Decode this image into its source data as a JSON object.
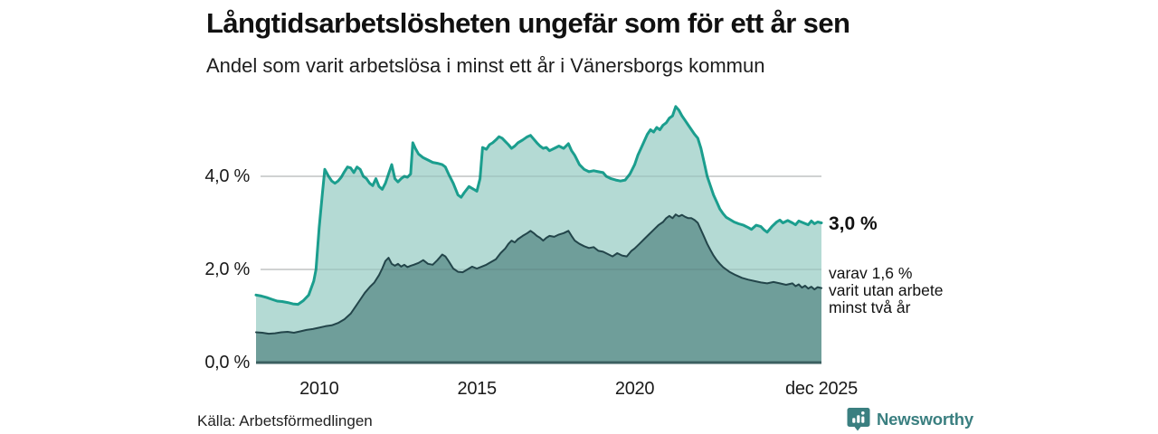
{
  "header": {
    "title": "Långtidsarbetslösheten ungefär som för ett år sen",
    "subtitle": "Andel som varit arbetslösa i minst ett år i Vänersborgs kommun"
  },
  "chart_data": {
    "type": "area",
    "unit": "%",
    "x_range": [
      2008,
      2025.92
    ],
    "ylim": [
      0,
      5.7
    ],
    "grid": "horizontal",
    "axis_color": "#3b5f60",
    "gridline_color": "#d9d9d9",
    "yticks": [
      {
        "value": 0,
        "label": "0,0 %"
      },
      {
        "value": 2,
        "label": "2,0 %"
      },
      {
        "value": 4,
        "label": "4,0 %"
      }
    ],
    "xticks": [
      {
        "value": 2010,
        "label": "2010"
      },
      {
        "value": 2015,
        "label": "2015"
      },
      {
        "value": 2020,
        "label": "2020"
      },
      {
        "value": 2025.92,
        "label": "dec 2025"
      }
    ],
    "series": [
      {
        "id": "minst-ett-ar",
        "name": "Andel arbetslösa i minst ett år",
        "color": "#1b9e8e",
        "fill": "#b4dad4",
        "line_width": 3,
        "end_value": "3,0 %",
        "points": [
          [
            2008.0,
            1.45
          ],
          [
            2008.17,
            1.43
          ],
          [
            2008.33,
            1.4
          ],
          [
            2008.5,
            1.36
          ],
          [
            2008.67,
            1.32
          ],
          [
            2008.83,
            1.31
          ],
          [
            2009.0,
            1.29
          ],
          [
            2009.17,
            1.26
          ],
          [
            2009.33,
            1.25
          ],
          [
            2009.5,
            1.33
          ],
          [
            2009.67,
            1.45
          ],
          [
            2009.83,
            1.75
          ],
          [
            2009.9,
            2.0
          ],
          [
            2010.0,
            2.9
          ],
          [
            2010.1,
            3.6
          ],
          [
            2010.18,
            4.15
          ],
          [
            2010.3,
            4.0
          ],
          [
            2010.4,
            3.9
          ],
          [
            2010.5,
            3.85
          ],
          [
            2010.6,
            3.9
          ],
          [
            2010.7,
            3.98
          ],
          [
            2010.8,
            4.1
          ],
          [
            2010.9,
            4.2
          ],
          [
            2011.0,
            4.18
          ],
          [
            2011.1,
            4.08
          ],
          [
            2011.2,
            4.2
          ],
          [
            2011.3,
            4.15
          ],
          [
            2011.4,
            4.0
          ],
          [
            2011.5,
            3.95
          ],
          [
            2011.6,
            3.85
          ],
          [
            2011.7,
            3.8
          ],
          [
            2011.8,
            3.95
          ],
          [
            2011.9,
            3.78
          ],
          [
            2012.0,
            3.72
          ],
          [
            2012.1,
            3.85
          ],
          [
            2012.2,
            4.05
          ],
          [
            2012.3,
            4.25
          ],
          [
            2012.4,
            3.95
          ],
          [
            2012.5,
            3.88
          ],
          [
            2012.6,
            3.95
          ],
          [
            2012.7,
            4.0
          ],
          [
            2012.8,
            3.98
          ],
          [
            2012.9,
            4.05
          ],
          [
            2012.97,
            4.72
          ],
          [
            2013.05,
            4.6
          ],
          [
            2013.15,
            4.48
          ],
          [
            2013.3,
            4.4
          ],
          [
            2013.45,
            4.35
          ],
          [
            2013.6,
            4.3
          ],
          [
            2013.75,
            4.28
          ],
          [
            2013.9,
            4.25
          ],
          [
            2014.0,
            4.2
          ],
          [
            2014.1,
            4.05
          ],
          [
            2014.25,
            3.85
          ],
          [
            2014.4,
            3.6
          ],
          [
            2014.5,
            3.55
          ],
          [
            2014.6,
            3.65
          ],
          [
            2014.75,
            3.78
          ],
          [
            2014.9,
            3.72
          ],
          [
            2015.0,
            3.68
          ],
          [
            2015.1,
            3.95
          ],
          [
            2015.18,
            4.62
          ],
          [
            2015.3,
            4.58
          ],
          [
            2015.4,
            4.68
          ],
          [
            2015.5,
            4.72
          ],
          [
            2015.6,
            4.78
          ],
          [
            2015.7,
            4.85
          ],
          [
            2015.8,
            4.82
          ],
          [
            2015.9,
            4.75
          ],
          [
            2016.0,
            4.68
          ],
          [
            2016.1,
            4.6
          ],
          [
            2016.2,
            4.65
          ],
          [
            2016.3,
            4.72
          ],
          [
            2016.45,
            4.78
          ],
          [
            2016.6,
            4.85
          ],
          [
            2016.7,
            4.88
          ],
          [
            2016.8,
            4.8
          ],
          [
            2016.9,
            4.72
          ],
          [
            2017.0,
            4.65
          ],
          [
            2017.1,
            4.6
          ],
          [
            2017.2,
            4.62
          ],
          [
            2017.3,
            4.55
          ],
          [
            2017.45,
            4.6
          ],
          [
            2017.6,
            4.65
          ],
          [
            2017.75,
            4.6
          ],
          [
            2017.9,
            4.7
          ],
          [
            2018.0,
            4.55
          ],
          [
            2018.1,
            4.45
          ],
          [
            2018.25,
            4.25
          ],
          [
            2018.4,
            4.15
          ],
          [
            2018.55,
            4.1
          ],
          [
            2018.7,
            4.12
          ],
          [
            2018.85,
            4.1
          ],
          [
            2019.0,
            4.08
          ],
          [
            2019.1,
            4.0
          ],
          [
            2019.25,
            3.95
          ],
          [
            2019.4,
            3.92
          ],
          [
            2019.55,
            3.9
          ],
          [
            2019.7,
            3.92
          ],
          [
            2019.85,
            4.05
          ],
          [
            2020.0,
            4.25
          ],
          [
            2020.1,
            4.45
          ],
          [
            2020.2,
            4.6
          ],
          [
            2020.3,
            4.75
          ],
          [
            2020.4,
            4.9
          ],
          [
            2020.5,
            5.0
          ],
          [
            2020.6,
            4.95
          ],
          [
            2020.7,
            5.05
          ],
          [
            2020.8,
            5.0
          ],
          [
            2020.9,
            5.1
          ],
          [
            2021.0,
            5.15
          ],
          [
            2021.1,
            5.25
          ],
          [
            2021.2,
            5.3
          ],
          [
            2021.3,
            5.5
          ],
          [
            2021.4,
            5.42
          ],
          [
            2021.5,
            5.3
          ],
          [
            2021.6,
            5.2
          ],
          [
            2021.7,
            5.1
          ],
          [
            2021.8,
            5.0
          ],
          [
            2021.9,
            4.9
          ],
          [
            2022.0,
            4.82
          ],
          [
            2022.1,
            4.6
          ],
          [
            2022.2,
            4.3
          ],
          [
            2022.3,
            4.0
          ],
          [
            2022.4,
            3.8
          ],
          [
            2022.5,
            3.6
          ],
          [
            2022.6,
            3.45
          ],
          [
            2022.7,
            3.3
          ],
          [
            2022.8,
            3.2
          ],
          [
            2022.9,
            3.12
          ],
          [
            2023.0,
            3.08
          ],
          [
            2023.15,
            3.02
          ],
          [
            2023.3,
            2.98
          ],
          [
            2023.45,
            2.95
          ],
          [
            2023.6,
            2.9
          ],
          [
            2023.7,
            2.86
          ],
          [
            2023.85,
            2.95
          ],
          [
            2024.0,
            2.92
          ],
          [
            2024.1,
            2.85
          ],
          [
            2024.2,
            2.8
          ],
          [
            2024.35,
            2.92
          ],
          [
            2024.5,
            3.02
          ],
          [
            2024.6,
            3.06
          ],
          [
            2024.7,
            3.0
          ],
          [
            2024.85,
            3.05
          ],
          [
            2025.0,
            3.0
          ],
          [
            2025.1,
            2.96
          ],
          [
            2025.2,
            3.04
          ],
          [
            2025.35,
            3.0
          ],
          [
            2025.5,
            2.96
          ],
          [
            2025.6,
            3.04
          ],
          [
            2025.7,
            2.98
          ],
          [
            2025.8,
            3.02
          ],
          [
            2025.92,
            3.0
          ]
        ]
      },
      {
        "id": "minst-tva-ar",
        "name": "varav arbetslösa minst två år",
        "color": "#23454a",
        "fill": "#6f9e9a",
        "line_width": 2,
        "end_value": "1,6 %",
        "points": [
          [
            2008.0,
            0.65
          ],
          [
            2008.2,
            0.64
          ],
          [
            2008.4,
            0.62
          ],
          [
            2008.6,
            0.63
          ],
          [
            2008.8,
            0.65
          ],
          [
            2009.0,
            0.66
          ],
          [
            2009.2,
            0.64
          ],
          [
            2009.4,
            0.67
          ],
          [
            2009.6,
            0.7
          ],
          [
            2009.8,
            0.72
          ],
          [
            2010.0,
            0.75
          ],
          [
            2010.2,
            0.78
          ],
          [
            2010.4,
            0.8
          ],
          [
            2010.6,
            0.85
          ],
          [
            2010.8,
            0.93
          ],
          [
            2011.0,
            1.05
          ],
          [
            2011.15,
            1.2
          ],
          [
            2011.3,
            1.35
          ],
          [
            2011.45,
            1.5
          ],
          [
            2011.6,
            1.62
          ],
          [
            2011.75,
            1.72
          ],
          [
            2011.9,
            1.88
          ],
          [
            2012.0,
            2.02
          ],
          [
            2012.1,
            2.18
          ],
          [
            2012.2,
            2.25
          ],
          [
            2012.3,
            2.12
          ],
          [
            2012.4,
            2.08
          ],
          [
            2012.5,
            2.12
          ],
          [
            2012.6,
            2.06
          ],
          [
            2012.7,
            2.1
          ],
          [
            2012.8,
            2.05
          ],
          [
            2012.9,
            2.08
          ],
          [
            2013.0,
            2.1
          ],
          [
            2013.15,
            2.14
          ],
          [
            2013.3,
            2.2
          ],
          [
            2013.45,
            2.12
          ],
          [
            2013.6,
            2.1
          ],
          [
            2013.75,
            2.2
          ],
          [
            2013.9,
            2.32
          ],
          [
            2014.0,
            2.28
          ],
          [
            2014.1,
            2.18
          ],
          [
            2014.25,
            2.02
          ],
          [
            2014.4,
            1.95
          ],
          [
            2014.55,
            1.94
          ],
          [
            2014.7,
            2.0
          ],
          [
            2014.85,
            2.06
          ],
          [
            2015.0,
            2.02
          ],
          [
            2015.15,
            2.06
          ],
          [
            2015.3,
            2.1
          ],
          [
            2015.45,
            2.16
          ],
          [
            2015.6,
            2.22
          ],
          [
            2015.75,
            2.35
          ],
          [
            2015.9,
            2.45
          ],
          [
            2016.0,
            2.55
          ],
          [
            2016.1,
            2.62
          ],
          [
            2016.2,
            2.58
          ],
          [
            2016.3,
            2.65
          ],
          [
            2016.45,
            2.72
          ],
          [
            2016.6,
            2.78
          ],
          [
            2016.7,
            2.83
          ],
          [
            2016.8,
            2.78
          ],
          [
            2016.9,
            2.72
          ],
          [
            2017.0,
            2.68
          ],
          [
            2017.1,
            2.62
          ],
          [
            2017.2,
            2.68
          ],
          [
            2017.3,
            2.72
          ],
          [
            2017.45,
            2.7
          ],
          [
            2017.6,
            2.75
          ],
          [
            2017.75,
            2.78
          ],
          [
            2017.9,
            2.83
          ],
          [
            2018.0,
            2.72
          ],
          [
            2018.1,
            2.62
          ],
          [
            2018.25,
            2.55
          ],
          [
            2018.4,
            2.5
          ],
          [
            2018.55,
            2.46
          ],
          [
            2018.7,
            2.48
          ],
          [
            2018.85,
            2.4
          ],
          [
            2019.0,
            2.38
          ],
          [
            2019.15,
            2.33
          ],
          [
            2019.3,
            2.28
          ],
          [
            2019.45,
            2.35
          ],
          [
            2019.6,
            2.3
          ],
          [
            2019.75,
            2.28
          ],
          [
            2019.9,
            2.4
          ],
          [
            2020.0,
            2.45
          ],
          [
            2020.15,
            2.55
          ],
          [
            2020.3,
            2.65
          ],
          [
            2020.45,
            2.75
          ],
          [
            2020.6,
            2.85
          ],
          [
            2020.75,
            2.95
          ],
          [
            2020.9,
            3.02
          ],
          [
            2021.0,
            3.1
          ],
          [
            2021.1,
            3.15
          ],
          [
            2021.2,
            3.1
          ],
          [
            2021.3,
            3.18
          ],
          [
            2021.4,
            3.14
          ],
          [
            2021.5,
            3.17
          ],
          [
            2021.6,
            3.13
          ],
          [
            2021.7,
            3.1
          ],
          [
            2021.8,
            3.1
          ],
          [
            2021.9,
            3.06
          ],
          [
            2022.0,
            3.0
          ],
          [
            2022.1,
            2.85
          ],
          [
            2022.2,
            2.7
          ],
          [
            2022.3,
            2.55
          ],
          [
            2022.4,
            2.42
          ],
          [
            2022.5,
            2.3
          ],
          [
            2022.6,
            2.2
          ],
          [
            2022.7,
            2.12
          ],
          [
            2022.8,
            2.05
          ],
          [
            2022.9,
            2.0
          ],
          [
            2023.0,
            1.95
          ],
          [
            2023.2,
            1.88
          ],
          [
            2023.4,
            1.82
          ],
          [
            2023.6,
            1.78
          ],
          [
            2023.8,
            1.75
          ],
          [
            2024.0,
            1.72
          ],
          [
            2024.2,
            1.7
          ],
          [
            2024.4,
            1.73
          ],
          [
            2024.6,
            1.7
          ],
          [
            2024.8,
            1.67
          ],
          [
            2025.0,
            1.7
          ],
          [
            2025.1,
            1.64
          ],
          [
            2025.2,
            1.68
          ],
          [
            2025.3,
            1.61
          ],
          [
            2025.4,
            1.65
          ],
          [
            2025.5,
            1.59
          ],
          [
            2025.6,
            1.63
          ],
          [
            2025.7,
            1.57
          ],
          [
            2025.8,
            1.62
          ],
          [
            2025.92,
            1.6
          ]
        ]
      }
    ],
    "annotations": {
      "end_value_top": "3,0 %",
      "end_note_lines": [
        "varav 1,6 %",
        "varit utan arbete",
        "minst två år"
      ]
    }
  },
  "footer": {
    "source": "Källa: Arbetsförmedlingen",
    "brand": "Newsworthy"
  },
  "colors": {
    "accent_teal": "#1b9e8e",
    "light_fill": "#b4dad4",
    "dark_fill": "#6f9e9a",
    "dark_line": "#23454a",
    "axis": "#3b5f60",
    "gridline": "#d9d9d9",
    "brand_teal": "#3a7f80",
    "text": "#111111"
  }
}
